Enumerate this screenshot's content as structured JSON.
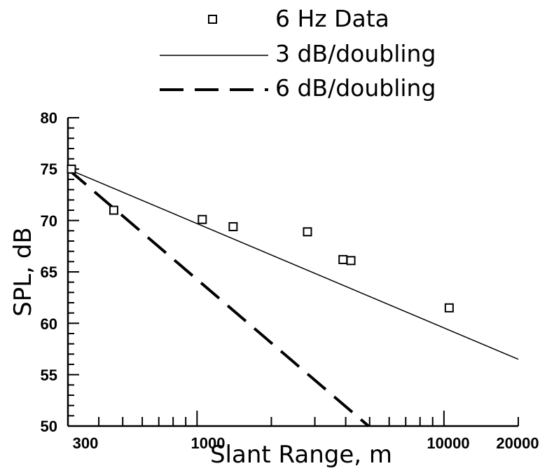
{
  "chart_data": {
    "type": "scatter",
    "title": "",
    "xlabel": "Slant Range, m",
    "ylabel": "SPL, dB",
    "x_scale": "log",
    "xlim": [
      300,
      20000
    ],
    "ylim": [
      50,
      80
    ],
    "x_tick_labels": [
      "300",
      "1000",
      "10000",
      "20000"
    ],
    "y_tick_labels": [
      "50",
      "55",
      "60",
      "65",
      "70",
      "75",
      "80"
    ],
    "grid": false,
    "legend_position": "top",
    "series": [
      {
        "name": "6 Hz Data",
        "kind": "scatter",
        "marker": "square",
        "x": [
          310,
          460,
          1050,
          1400,
          2800,
          3900,
          4200,
          10500
        ],
        "y": [
          75.0,
          71.0,
          70.1,
          69.4,
          68.9,
          66.2,
          66.1,
          61.5
        ]
      },
      {
        "name": "3 dB/doubling",
        "kind": "line",
        "style": "solid",
        "x": [
          300,
          20000
        ],
        "y": [
          75.0,
          56.5
        ]
      },
      {
        "name": "6 dB/doubling",
        "kind": "line",
        "style": "dashed",
        "x": [
          300,
          4950
        ],
        "y": [
          75.0,
          50.0
        ]
      }
    ]
  }
}
